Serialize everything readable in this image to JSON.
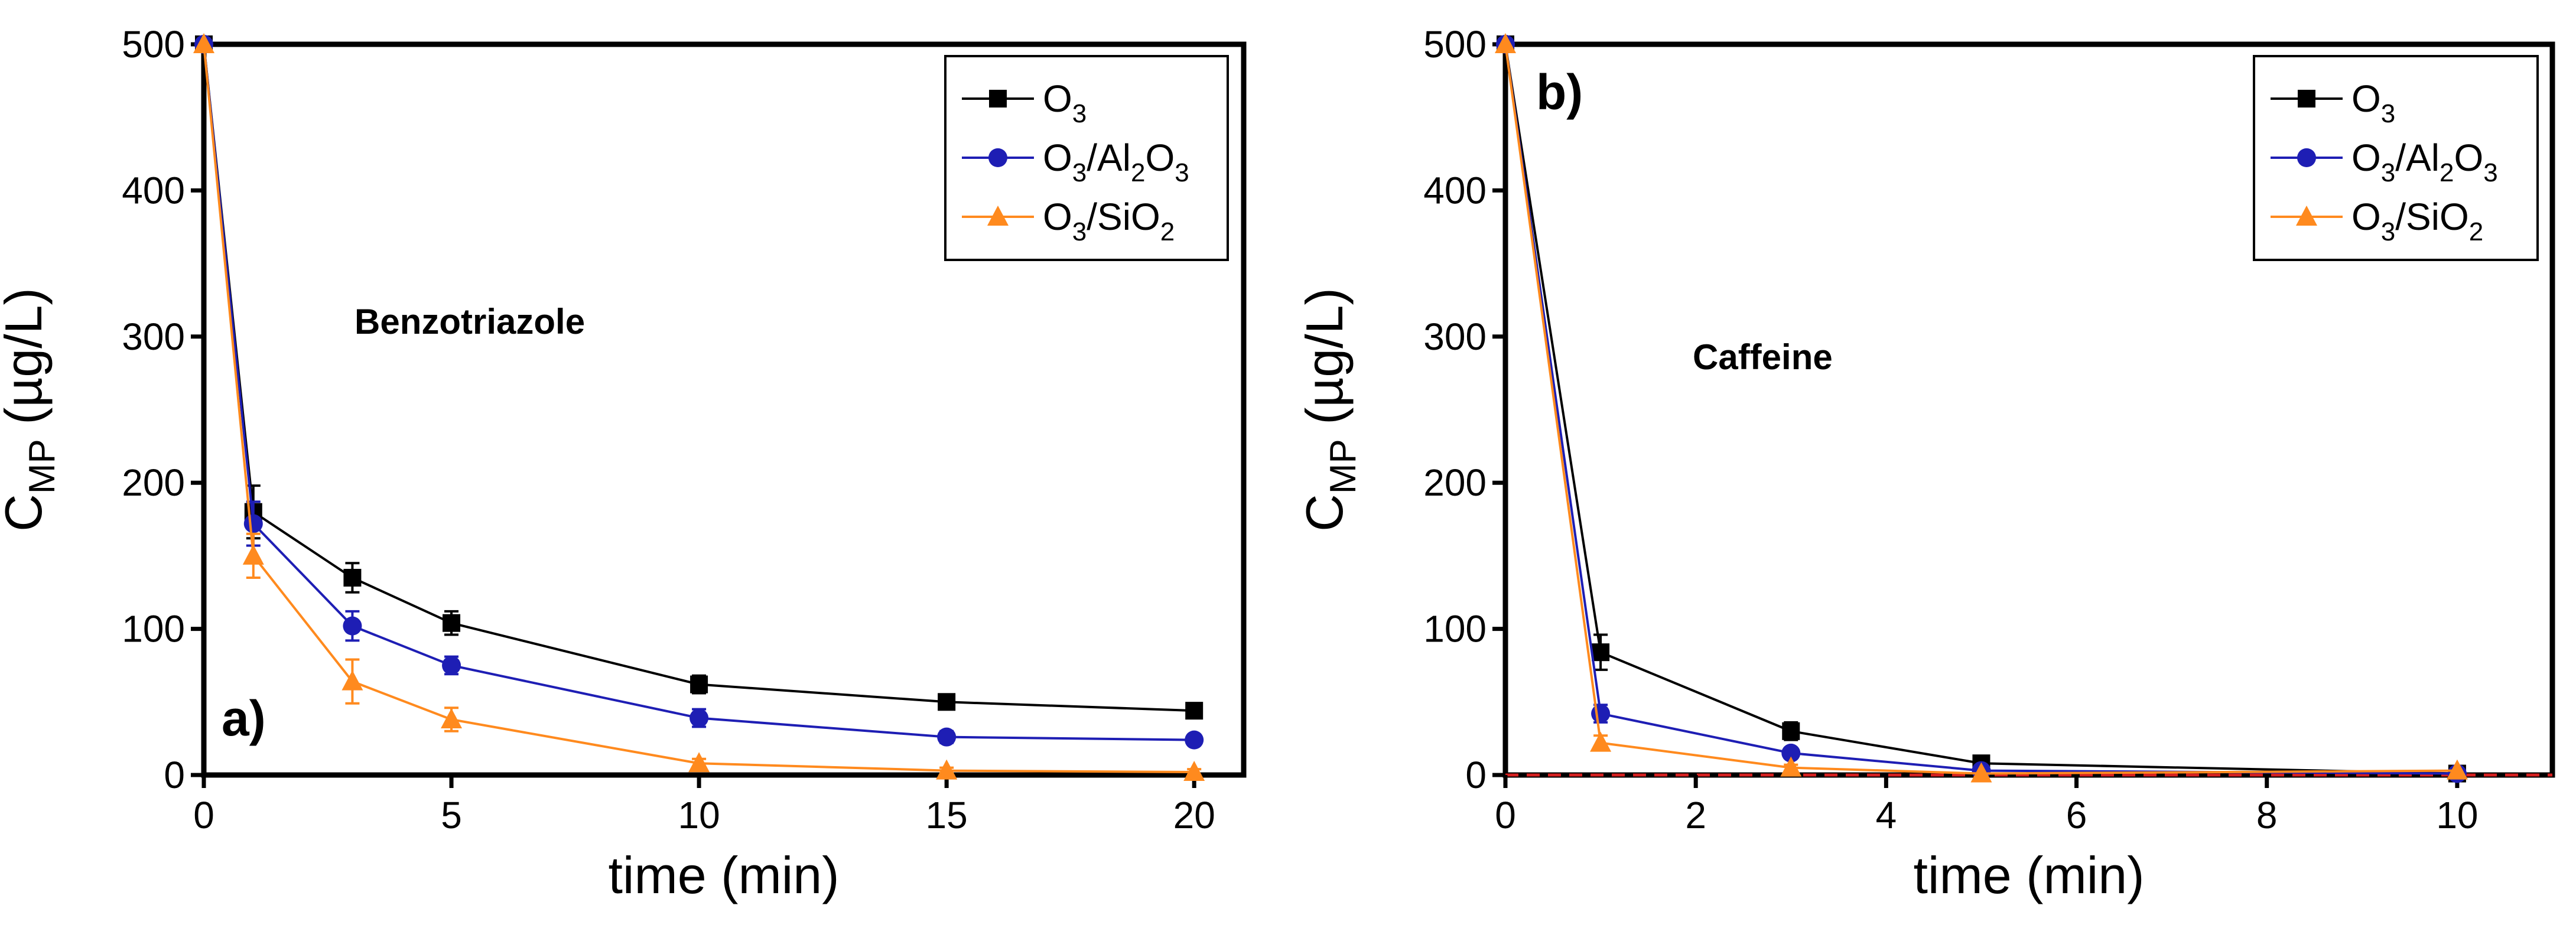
{
  "chart_data": [
    {
      "type": "line",
      "panel_label": "a)",
      "annotation": "Benzotriazole",
      "xlabel": "time (min)",
      "ylabel": {
        "main": "C",
        "sub": "MP",
        "unit": " (µg/L)"
      },
      "xlim": [
        0,
        21
      ],
      "ylim": [
        0,
        500
      ],
      "xticks": [
        "0",
        "5",
        "10",
        "15",
        "20"
      ],
      "yticks": [
        "0",
        "100",
        "200",
        "300",
        "400",
        "500"
      ],
      "legend_position": "top-right",
      "series": [
        {
          "name": "O3",
          "label": [
            {
              "t": "O",
              "sub": false
            },
            {
              "t": "3",
              "sub": true
            }
          ],
          "color": "#000000",
          "marker": "square",
          "x": [
            0,
            1,
            3,
            5,
            10,
            15,
            20
          ],
          "y": [
            500,
            180,
            135,
            104,
            62,
            50,
            44
          ],
          "err": [
            0,
            18,
            10,
            8,
            6,
            4,
            3
          ]
        },
        {
          "name": "O3/Al2O3",
          "label": [
            {
              "t": "O",
              "sub": false
            },
            {
              "t": "3",
              "sub": true
            },
            {
              "t": "/Al",
              "sub": false
            },
            {
              "t": "2",
              "sub": true
            },
            {
              "t": "O",
              "sub": false
            },
            {
              "t": "3",
              "sub": true
            }
          ],
          "color": "#1e1eb4",
          "marker": "circle",
          "x": [
            0,
            1,
            3,
            5,
            10,
            15,
            20
          ],
          "y": [
            500,
            172,
            102,
            75,
            39,
            26,
            24
          ],
          "err": [
            0,
            15,
            10,
            6,
            6,
            4,
            3
          ]
        },
        {
          "name": "O3/SiO2",
          "label": [
            {
              "t": "O",
              "sub": false
            },
            {
              "t": "3",
              "sub": true
            },
            {
              "t": "/SiO",
              "sub": false
            },
            {
              "t": "2",
              "sub": true
            }
          ],
          "color": "#ff8a1e",
          "marker": "triangle",
          "x": [
            0,
            1,
            3,
            5,
            10,
            15,
            20
          ],
          "y": [
            500,
            150,
            64,
            38,
            8,
            3,
            2
          ],
          "err": [
            0,
            15,
            15,
            8,
            3,
            2,
            2
          ]
        }
      ]
    },
    {
      "type": "line",
      "panel_label": "b)",
      "annotation": "Caffeine",
      "xlabel": "time (min)",
      "ylabel": {
        "main": "C",
        "sub": "MP",
        "unit": " (µg/L)"
      },
      "xlim": [
        0,
        11
      ],
      "ylim": [
        0,
        500
      ],
      "xticks": [
        "0",
        "2",
        "4",
        "6",
        "8",
        "10"
      ],
      "yticks": [
        "0",
        "100",
        "200",
        "300",
        "400",
        "500"
      ],
      "legend_position": "top-right",
      "reference_line": {
        "y": 0,
        "color": "#d62020",
        "style": "dashed"
      },
      "series": [
        {
          "name": "O3",
          "label": [
            {
              "t": "O",
              "sub": false
            },
            {
              "t": "3",
              "sub": true
            }
          ],
          "color": "#000000",
          "marker": "square",
          "x": [
            0,
            1,
            3,
            5,
            10
          ],
          "y": [
            500,
            84,
            30,
            8,
            1
          ],
          "err": [
            0,
            12,
            6,
            2,
            0
          ]
        },
        {
          "name": "O3/Al2O3",
          "label": [
            {
              "t": "O",
              "sub": false
            },
            {
              "t": "3",
              "sub": true
            },
            {
              "t": "/Al",
              "sub": false
            },
            {
              "t": "2",
              "sub": true
            },
            {
              "t": "O",
              "sub": false
            },
            {
              "t": "3",
              "sub": true
            }
          ],
          "color": "#1e1eb4",
          "marker": "circle",
          "x": [
            0,
            1,
            3,
            5,
            10
          ],
          "y": [
            500,
            42,
            15,
            3,
            1
          ],
          "err": [
            0,
            6,
            3,
            1,
            0
          ]
        },
        {
          "name": "O3/SiO2",
          "label": [
            {
              "t": "O",
              "sub": false
            },
            {
              "t": "3",
              "sub": true
            },
            {
              "t": "/SiO",
              "sub": false
            },
            {
              "t": "2",
              "sub": true
            }
          ],
          "color": "#ff8a1e",
          "marker": "triangle",
          "x": [
            0,
            1,
            3,
            5,
            10
          ],
          "y": [
            500,
            22,
            5,
            1,
            3
          ],
          "err": [
            0,
            5,
            2,
            0,
            0
          ]
        }
      ]
    }
  ]
}
